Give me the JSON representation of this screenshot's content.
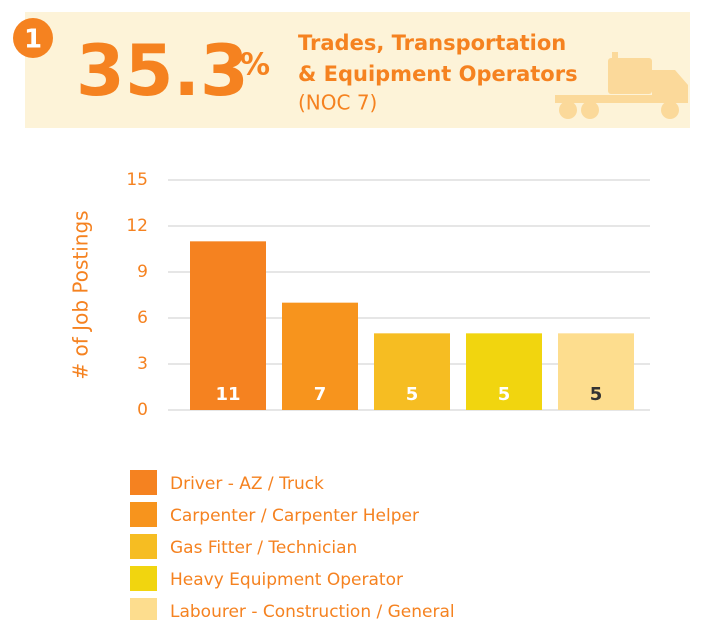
{
  "header": {
    "badge": "1",
    "percent": "35.3",
    "percent_sign": "%",
    "title_line1": "Trades, Transportation",
    "title_line2": "& Equipment Operators",
    "subtitle": "(NOC 7)"
  },
  "chart_data": {
    "type": "bar",
    "ylabel": "# of Job Postings",
    "categories": [
      "Driver - AZ / Truck",
      "Carpenter / Carpenter Helper",
      "Gas Fitter / Technician",
      "Heavy Equipment Operator",
      "Labourer - Construction / General"
    ],
    "values": [
      11,
      7,
      5,
      5,
      5
    ],
    "colors": [
      "#f58220",
      "#f7941d",
      "#f6bd22",
      "#f1d50f",
      "#fddd8e"
    ],
    "label_colors": [
      "#ffffff",
      "#ffffff",
      "#ffffff",
      "#ffffff",
      "#333333"
    ],
    "ylim": [
      0,
      15
    ],
    "yticks": [
      0,
      3,
      6,
      9,
      12,
      15
    ],
    "grid": true
  }
}
